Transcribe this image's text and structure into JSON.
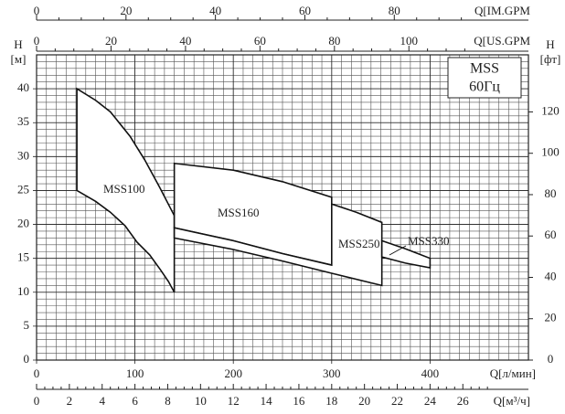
{
  "chart_data": {
    "type": "envelope",
    "xlim": [
      0,
      500
    ],
    "xticks": [
      0,
      100,
      200,
      300,
      400
    ],
    "x_label": "Q[л/мин]",
    "ylim": [
      0,
      45
    ],
    "yticks": [
      0,
      5,
      10,
      15,
      20,
      25,
      30,
      35,
      40
    ],
    "y_label": "H",
    "y_unit": "[м]",
    "y2lim": [
      0,
      147.6
    ],
    "y2ticks": [
      0,
      20,
      40,
      60,
      80,
      100,
      120
    ],
    "y2_label": "H",
    "y2_unit": "[фт]",
    "top_axes": [
      {
        "label": "Q[IM.GPM",
        "lim": [
          0,
          110
        ],
        "ticks": [
          0,
          20,
          40,
          60,
          80
        ]
      },
      {
        "label": "Q[US.GPM",
        "lim": [
          0,
          132.1
        ],
        "ticks": [
          0,
          20,
          40,
          60,
          80,
          100
        ]
      }
    ],
    "bottom_axis2": {
      "label": "Q[м³/ч]",
      "lim": [
        0,
        30
      ],
      "ticks": [
        0,
        2,
        4,
        6,
        8,
        10,
        12,
        14,
        16,
        18,
        20,
        22,
        24,
        26
      ]
    },
    "grid": true,
    "legend": {
      "title": "MSS",
      "subtitle": "60Гц"
    },
    "series": [
      {
        "name": "MSS100",
        "x": [
          41,
          60,
          75,
          95,
          110,
          125,
          140,
          140,
          134,
          126,
          115,
          102,
          90,
          75,
          60,
          41
        ],
        "values": [
          40,
          38.3,
          36.6,
          33,
          29.5,
          25.5,
          21.3,
          10,
          11.6,
          13.3,
          15.5,
          17.4,
          19.8,
          21.8,
          23.4,
          25
        ]
      },
      {
        "name": "MSS160",
        "x": [
          140,
          200,
          250,
          300,
          300,
          250,
          200,
          140
        ],
        "values": [
          29,
          28,
          26.3,
          24,
          14,
          15.7,
          17.6,
          19.5
        ]
      },
      {
        "name": "MSS250",
        "x": [
          300,
          325,
          351,
          351,
          300,
          250,
          200,
          140,
          140,
          200,
          250,
          300
        ],
        "values": [
          23,
          21.8,
          20.3,
          11,
          12.8,
          14.6,
          16.3,
          18,
          19.5,
          17.6,
          15.7,
          14
        ]
      },
      {
        "name": "MSS330",
        "x": [
          351,
          375,
          400,
          400,
          375,
          351
        ],
        "values": [
          17.6,
          16.4,
          15,
          13.6,
          14.3,
          15.2
        ]
      }
    ]
  }
}
